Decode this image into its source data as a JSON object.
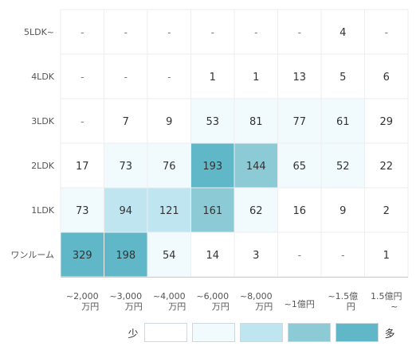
{
  "chart_data": {
    "type": "heatmap",
    "rows": [
      "5LDK~",
      "4LDK",
      "3LDK",
      "2LDK",
      "1LDK",
      "ワンルーム"
    ],
    "columns": [
      [
        "~2,000",
        "万円"
      ],
      [
        "~3,000",
        "万円"
      ],
      [
        "~4,000",
        "万円"
      ],
      [
        "~6,000",
        "万円"
      ],
      [
        "~8,000",
        "万円"
      ],
      [
        "~1億円"
      ],
      [
        "~1.5億",
        "円"
      ],
      [
        "1.5億円",
        "~"
      ]
    ],
    "values": [
      [
        null,
        null,
        null,
        null,
        null,
        null,
        4,
        null
      ],
      [
        null,
        null,
        null,
        1,
        1,
        13,
        5,
        6
      ],
      [
        null,
        7,
        9,
        53,
        81,
        77,
        61,
        29
      ],
      [
        17,
        73,
        76,
        193,
        144,
        65,
        52,
        22
      ],
      [
        73,
        94,
        121,
        161,
        62,
        16,
        9,
        2
      ],
      [
        329,
        198,
        54,
        14,
        3,
        null,
        null,
        1
      ]
    ],
    "empty_symbol": "-",
    "legend": {
      "low_label": "少",
      "high_label": "多",
      "colors": [
        "#ffffff",
        "#f1fbfd",
        "#bfe6f0",
        "#8ccad5",
        "#5fb7c8"
      ]
    },
    "color_bins": {
      "thresholds": [
        50,
        90,
        140,
        180
      ],
      "colors": [
        "#ffffff",
        "#f1fbfd",
        "#bfe6f0",
        "#8ccad5",
        "#5fb7c8"
      ]
    },
    "dark_text_color": "#333333",
    "grid": true
  }
}
